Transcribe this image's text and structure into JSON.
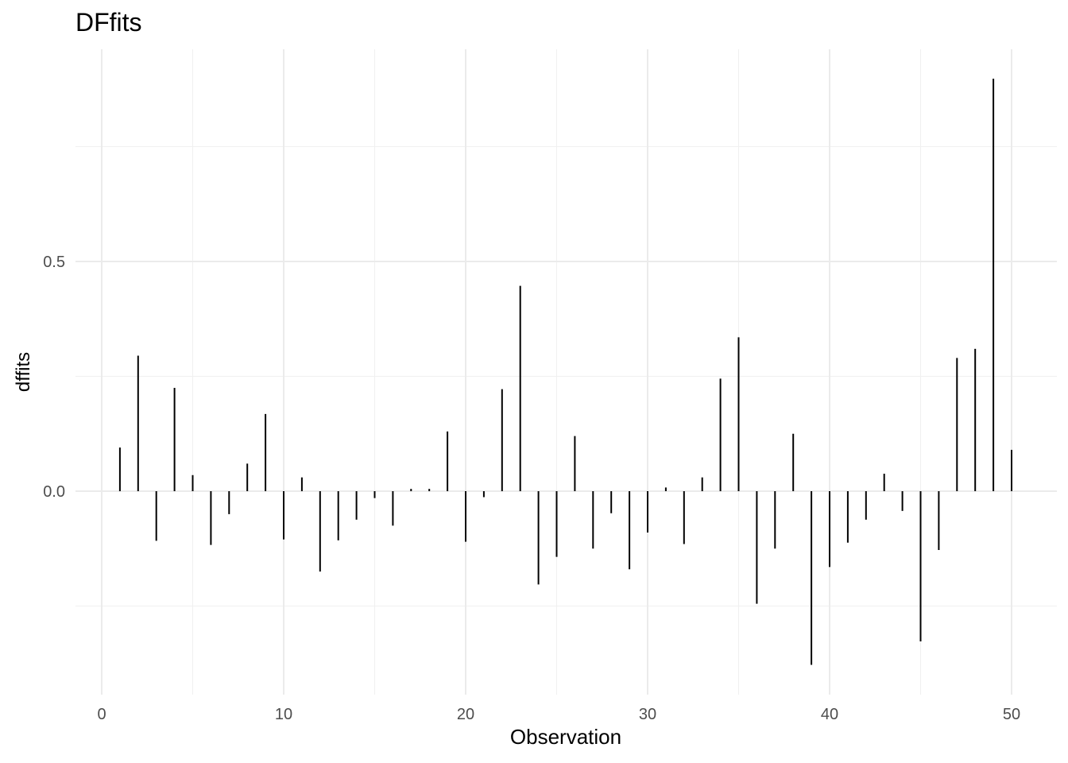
{
  "chart_data": {
    "type": "bar",
    "title": "DFfits",
    "xlabel": "Observation",
    "ylabel": "dffits",
    "xlim": [
      -0.5,
      51.2
    ],
    "ylim": [
      -0.44,
      0.96
    ],
    "x_ticks": [
      0,
      10,
      20,
      30,
      40,
      50
    ],
    "y_ticks": [
      0.0,
      0.5
    ],
    "y_tick_labels": [
      "0.0",
      "0.5"
    ],
    "grid": true,
    "bar_color": "#000000",
    "x": [
      1,
      2,
      3,
      4,
      5,
      6,
      7,
      8,
      9,
      10,
      11,
      12,
      13,
      14,
      15,
      16,
      17,
      18,
      19,
      20,
      21,
      22,
      23,
      24,
      25,
      26,
      27,
      28,
      29,
      30,
      31,
      32,
      33,
      34,
      35,
      36,
      37,
      38,
      39,
      40,
      41,
      42,
      43,
      44,
      45,
      46,
      47,
      48,
      49,
      50
    ],
    "values": [
      0.095,
      0.295,
      -0.108,
      0.225,
      0.035,
      -0.117,
      -0.05,
      0.06,
      0.168,
      -0.105,
      0.03,
      -0.175,
      -0.107,
      -0.062,
      -0.015,
      -0.075,
      0.005,
      0.005,
      0.13,
      -0.11,
      -0.013,
      0.222,
      0.447,
      -0.203,
      -0.143,
      0.12,
      -0.125,
      -0.048,
      -0.17,
      -0.09,
      0.008,
      -0.115,
      0.03,
      0.245,
      0.335,
      -0.245,
      -0.125,
      0.125,
      -0.378,
      -0.165,
      -0.112,
      -0.062,
      0.038,
      -0.043,
      -0.327,
      -0.128,
      0.29,
      0.31,
      0.898,
      0.09
    ]
  }
}
